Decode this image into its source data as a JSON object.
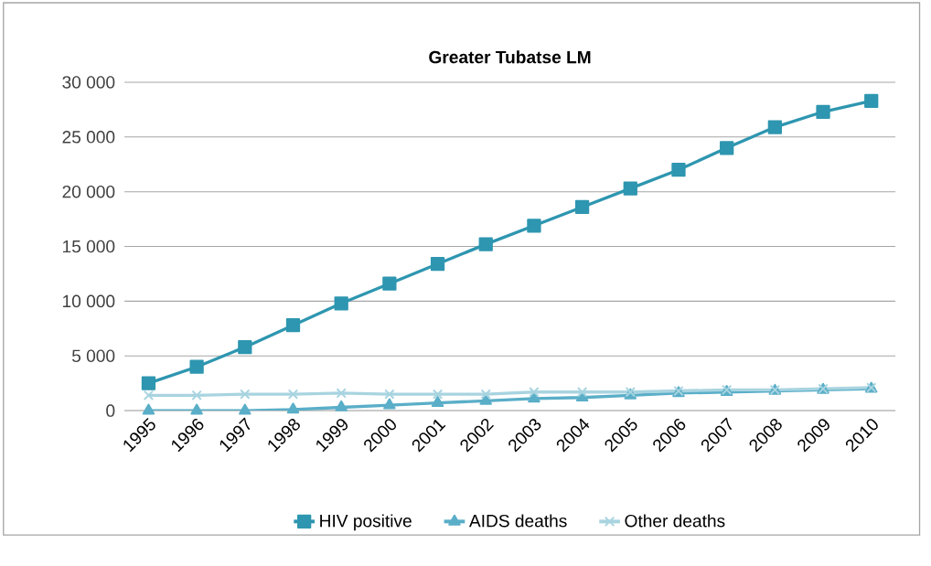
{
  "chart_data": {
    "type": "line",
    "title": "Greater Tubatse LM",
    "categories": [
      "1995",
      "1996",
      "1997",
      "1998",
      "1999",
      "2000",
      "2001",
      "2002",
      "2003",
      "2004",
      "2005",
      "2006",
      "2007",
      "2008",
      "2009",
      "2010"
    ],
    "series": [
      {
        "name": "HIV positive",
        "color": "#2e96b0",
        "marker": "square",
        "values": [
          2500,
          4000,
          5800,
          7800,
          9800,
          11600,
          13400,
          15200,
          16900,
          18600,
          20300,
          22000,
          24000,
          25900,
          27300,
          28300
        ]
      },
      {
        "name": "AIDS deaths",
        "color": "#5aaec8",
        "marker": "triangle",
        "values": [
          0,
          0,
          0,
          100,
          300,
          500,
          700,
          900,
          1100,
          1200,
          1400,
          1600,
          1700,
          1800,
          1900,
          2000
        ]
      },
      {
        "name": "Other deaths",
        "color": "#a8d4e0",
        "marker": "cross",
        "values": [
          1400,
          1400,
          1500,
          1500,
          1600,
          1500,
          1500,
          1500,
          1700,
          1700,
          1700,
          1800,
          1900,
          1900,
          2000,
          2100
        ]
      }
    ],
    "ylim": [
      0,
      30000
    ],
    "yticks": [
      0,
      {
        "value": 5000,
        "label": "5 000"
      },
      {
        "value": 10000,
        "label": "10 000"
      },
      {
        "value": 15000,
        "label": "15 000"
      },
      {
        "value": 20000,
        "label": "20 000"
      },
      {
        "value": 25000,
        "label": "25 000"
      },
      {
        "value": 30000,
        "label": "30 000"
      }
    ],
    "grid": "y",
    "legend": "bottom"
  }
}
